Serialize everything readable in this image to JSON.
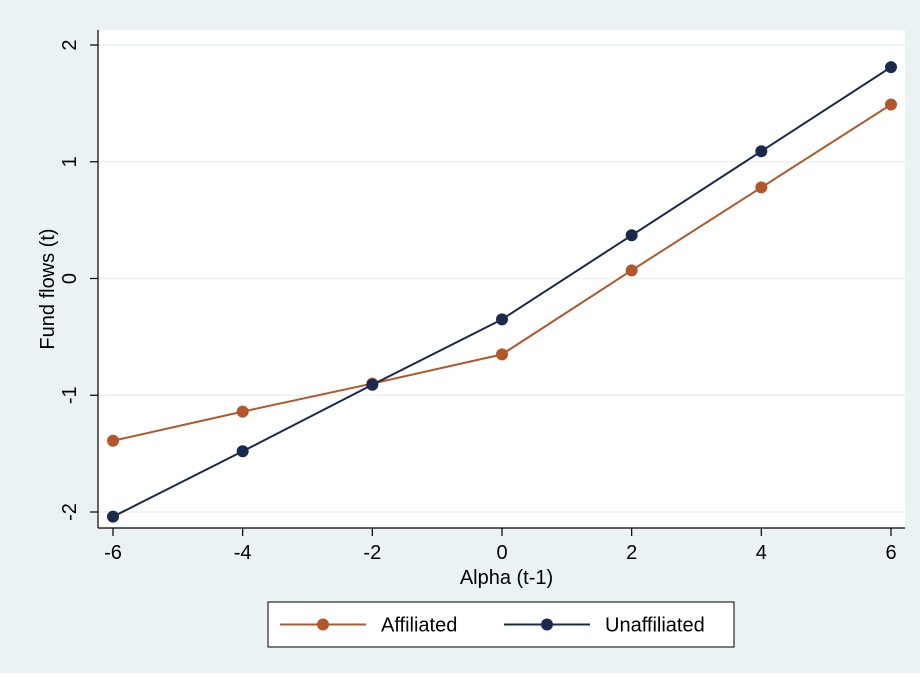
{
  "chart_data": {
    "type": "line",
    "title": "",
    "xlabel": "Alpha (t-1)",
    "ylabel": "Fund flows (t)",
    "x": [
      -6,
      -4,
      -2,
      0,
      2,
      4,
      6
    ],
    "xlim": [
      -6,
      6
    ],
    "ylim": [
      -2,
      2
    ],
    "xticks": [
      -6,
      -4,
      -2,
      0,
      2,
      4,
      6
    ],
    "yticks": [
      -2,
      -1,
      0,
      1,
      2
    ],
    "xtick_labels": [
      "-6",
      "-4",
      "-2",
      "0",
      "2",
      "4",
      "6"
    ],
    "ytick_labels": [
      "-2",
      "-1",
      "0",
      "1",
      "2"
    ],
    "grid": "horizontal",
    "legend_position": "bottom",
    "series": [
      {
        "name": "Affiliated",
        "color": "#b5562a",
        "values": [
          -1.39,
          -1.14,
          -0.9,
          -0.65,
          0.07,
          0.78,
          1.49
        ]
      },
      {
        "name": "Unaffiliated",
        "color": "#1a2a4f",
        "values": [
          -2.04,
          -1.48,
          -0.91,
          -0.35,
          0.37,
          1.09,
          1.81
        ]
      }
    ],
    "colors": {
      "background": "#eaf2f3",
      "plot_background": "#ffffff",
      "grid": "#eaf2f3",
      "axis": "#000000"
    }
  }
}
